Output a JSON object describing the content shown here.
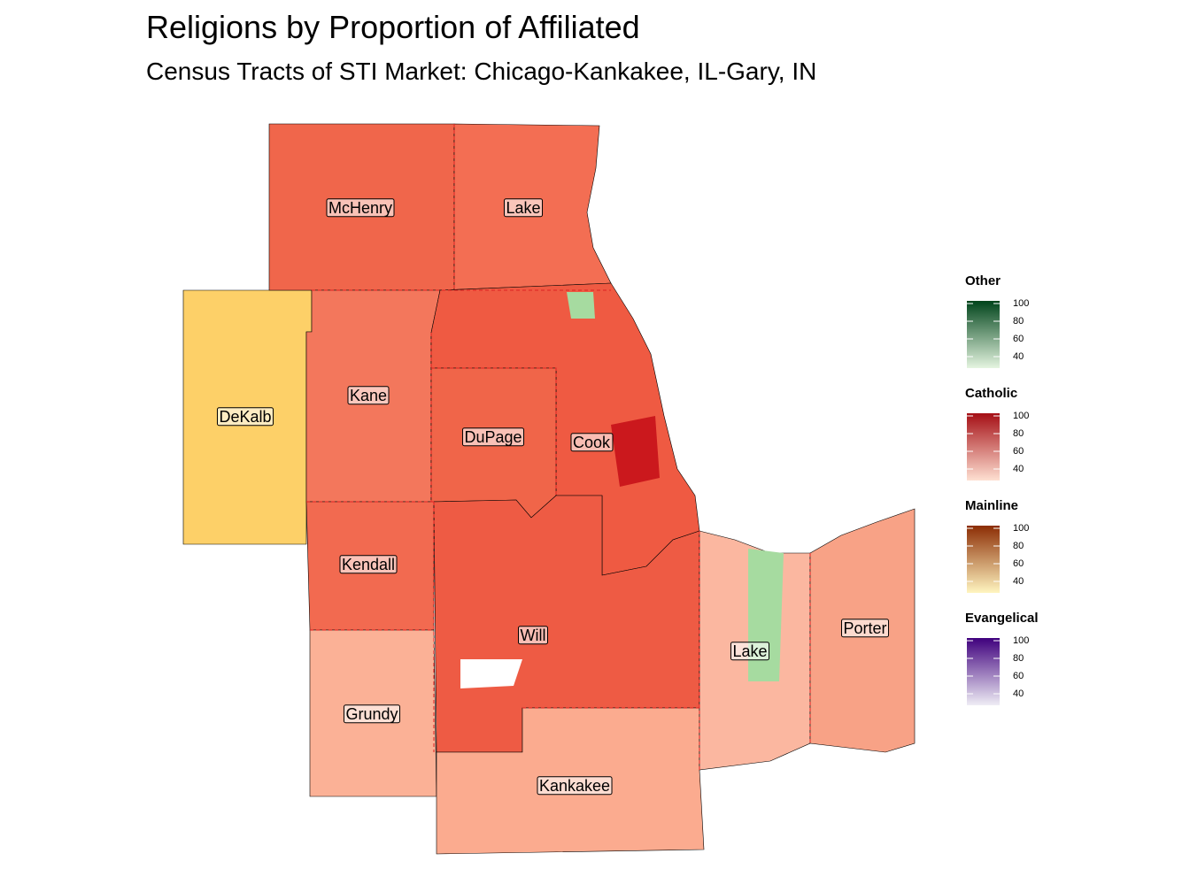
{
  "title": "Religions by Proportion of Affiliated",
  "subtitle": "Census Tracts of STI Market: Chicago-Kankakee, IL-Gary, IN",
  "counties": [
    {
      "label": "McHenry"
    },
    {
      "label": "Lake"
    },
    {
      "label": "DeKalb"
    },
    {
      "label": "Kane"
    },
    {
      "label": "DuPage"
    },
    {
      "label": "Cook"
    },
    {
      "label": "Kendall"
    },
    {
      "label": "Will"
    },
    {
      "label": "Lake"
    },
    {
      "label": "Porter"
    },
    {
      "label": "Grundy"
    },
    {
      "label": "Kankakee"
    }
  ],
  "legend": [
    {
      "title": "Other",
      "ticks": [
        100,
        80,
        60,
        40
      ],
      "colors": [
        "#e5f5e0",
        "#00441b"
      ]
    },
    {
      "title": "Catholic",
      "ticks": [
        100,
        80,
        60,
        40
      ],
      "colors": [
        "#fee0d2",
        "#a50f15"
      ]
    },
    {
      "title": "Mainline",
      "ticks": [
        100,
        80,
        60,
        40
      ],
      "colors": [
        "#fff5c0",
        "#8c2d04"
      ]
    },
    {
      "title": "Evangelical",
      "ticks": [
        100,
        80,
        60,
        40
      ],
      "colors": [
        "#efedf5",
        "#3f007d"
      ]
    }
  ]
}
